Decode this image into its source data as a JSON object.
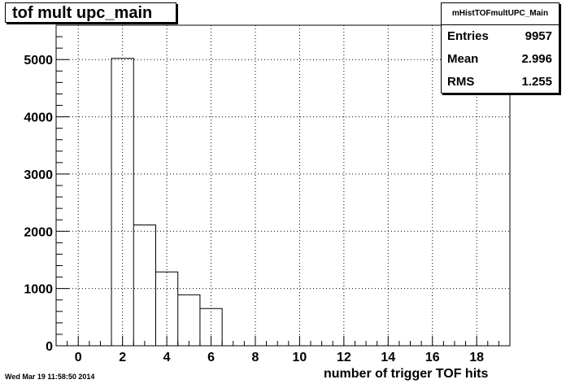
{
  "chart_data": {
    "type": "bar",
    "title": "tof mult upc_main",
    "xlabel": "number of trigger TOF hits",
    "ylabel": "",
    "xlim": [
      -1,
      19.5
    ],
    "ylim": [
      0,
      5600
    ],
    "xticks": [
      0,
      2,
      4,
      6,
      8,
      10,
      12,
      14,
      16,
      18
    ],
    "yticks": [
      0,
      1000,
      2000,
      3000,
      4000,
      5000
    ],
    "grid": true,
    "bins": [
      {
        "low": 1.5,
        "high": 2.5,
        "value": 5020
      },
      {
        "low": 2.5,
        "high": 3.5,
        "value": 2110
      },
      {
        "low": 3.5,
        "high": 4.5,
        "value": 1290
      },
      {
        "low": 4.5,
        "high": 5.5,
        "value": 890
      },
      {
        "low": 5.5,
        "high": 6.5,
        "value": 650
      }
    ]
  },
  "stats": {
    "name": "mHistTOFmultUPC_Main",
    "rows": [
      {
        "label": "Entries",
        "value": "9957"
      },
      {
        "label": "Mean",
        "value": "2.996"
      },
      {
        "label": "RMS",
        "value": "1.255"
      }
    ]
  },
  "timestamp": "Wed Mar 19 11:58:50 2014"
}
